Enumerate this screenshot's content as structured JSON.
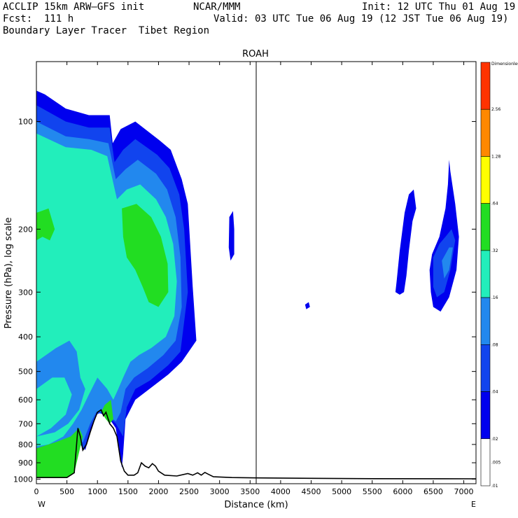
{
  "header": {
    "model": "ACCLIP 15km ARW–GFS init",
    "org": "NCAR/MMM",
    "init": "Init: 12 UTC Thu 01 Aug 19",
    "fcst": "Fcst:  111 h",
    "valid": "Valid: 03 UTC Tue 06 Aug 19 (12 JST Tue 06 Aug 19)",
    "field": "Boundary Layer Tracer  Tibet Region"
  },
  "chart_data": {
    "type": "contour-cross-section",
    "title": "ROAH",
    "xlabel": "Distance (km)",
    "ylabel": "Pressure (hPa), log scale",
    "x_left_label": "W",
    "x_right_label": "E",
    "xlim": [
      0,
      7200
    ],
    "ylim": [
      1030,
      68
    ],
    "y_scale": "log",
    "x_ticks": [
      0,
      500,
      1000,
      1500,
      2000,
      2500,
      3000,
      3500,
      4000,
      4500,
      5000,
      5500,
      6000,
      6500,
      7000
    ],
    "y_ticks": [
      100,
      200,
      300,
      400,
      500,
      600,
      700,
      800,
      900,
      1000
    ],
    "marker_line_x": 3600,
    "colorbar": {
      "levels": [
        "Dimensionless",
        "2.56",
        "1.28",
        ".64",
        ".32",
        ".16",
        ".08",
        ".04",
        ".02",
        ".01",
        ".005"
      ],
      "colors": [
        "#ff3300",
        "#ff8800",
        "#ffff00",
        "#22dd22",
        "#22eebb",
        "#2288ee",
        "#1144ee",
        "#0000ee",
        "#ffffff"
      ]
    },
    "terrain": [
      [
        0,
        990
      ],
      [
        100,
        990
      ],
      [
        300,
        990
      ],
      [
        500,
        990
      ],
      [
        620,
        960
      ],
      [
        680,
        720
      ],
      [
        720,
        760
      ],
      [
        760,
        830
      ],
      [
        820,
        800
      ],
      [
        880,
        740
      ],
      [
        940,
        690
      ],
      [
        1000,
        650
      ],
      [
        1060,
        640
      ],
      [
        1100,
        665
      ],
      [
        1140,
        650
      ],
      [
        1200,
        700
      ],
      [
        1260,
        720
      ],
      [
        1320,
        760
      ],
      [
        1380,
        890
      ],
      [
        1440,
        950
      ],
      [
        1500,
        975
      ],
      [
        1600,
        975
      ],
      [
        1660,
        960
      ],
      [
        1720,
        900
      ],
      [
        1780,
        920
      ],
      [
        1840,
        930
      ],
      [
        1900,
        905
      ],
      [
        1950,
        920
      ],
      [
        2000,
        950
      ],
      [
        2100,
        975
      ],
      [
        2300,
        980
      ],
      [
        2480,
        965
      ],
      [
        2560,
        975
      ],
      [
        2640,
        960
      ],
      [
        2700,
        975
      ],
      [
        2760,
        958
      ],
      [
        2820,
        970
      ],
      [
        2900,
        985
      ],
      [
        3200,
        990
      ],
      [
        3600,
        992
      ],
      [
        4500,
        995
      ],
      [
        5500,
        997
      ],
      [
        7200,
        998
      ]
    ],
    "regions": [
      {
        "level": 0,
        "points": [
          [
            0,
            82
          ],
          [
            140,
            84
          ],
          [
            480,
            92
          ],
          [
            860,
            96
          ],
          [
            1200,
            96
          ],
          [
            1250,
            115
          ],
          [
            1380,
            105
          ],
          [
            1620,
            100
          ],
          [
            2020,
            113
          ],
          [
            2200,
            120
          ],
          [
            2380,
            145
          ],
          [
            2480,
            170
          ],
          [
            2560,
            290
          ],
          [
            2620,
            410
          ],
          [
            2380,
            470
          ],
          [
            2160,
            510
          ],
          [
            1850,
            560
          ],
          [
            1620,
            600
          ],
          [
            1460,
            680
          ],
          [
            1420,
            850
          ],
          [
            1400,
            930
          ],
          [
            1300,
            720
          ],
          [
            1200,
            680
          ],
          [
            1100,
            660
          ],
          [
            1000,
            650
          ],
          [
            900,
            720
          ],
          [
            800,
            830
          ],
          [
            700,
            760
          ],
          [
            620,
            960
          ],
          [
            500,
            990
          ],
          [
            0,
            990
          ]
        ]
      },
      {
        "level": 1,
        "points": [
          [
            0,
            90
          ],
          [
            480,
            100
          ],
          [
            860,
            104
          ],
          [
            1200,
            104
          ],
          [
            1280,
            130
          ],
          [
            1420,
            120
          ],
          [
            1620,
            112
          ],
          [
            1980,
            124
          ],
          [
            2180,
            135
          ],
          [
            2340,
            160
          ],
          [
            2420,
            200
          ],
          [
            2480,
            300
          ],
          [
            2360,
            440
          ],
          [
            2160,
            480
          ],
          [
            1860,
            530
          ],
          [
            1620,
            560
          ],
          [
            1480,
            630
          ],
          [
            1420,
            760
          ],
          [
            1300,
            700
          ],
          [
            1160,
            665
          ],
          [
            1080,
            650
          ],
          [
            980,
            660
          ],
          [
            880,
            720
          ],
          [
            780,
            830
          ],
          [
            680,
            780
          ],
          [
            600,
            960
          ],
          [
            0,
            990
          ]
        ]
      },
      {
        "level": 2,
        "points": [
          [
            0,
            100
          ],
          [
            480,
            110
          ],
          [
            860,
            112
          ],
          [
            1180,
            115
          ],
          [
            1300,
            145
          ],
          [
            1460,
            136
          ],
          [
            1660,
            128
          ],
          [
            1960,
            140
          ],
          [
            2140,
            155
          ],
          [
            2280,
            185
          ],
          [
            2360,
            240
          ],
          [
            2380,
            330
          ],
          [
            2280,
            410
          ],
          [
            2080,
            450
          ],
          [
            1820,
            490
          ],
          [
            1600,
            520
          ],
          [
            1460,
            560
          ],
          [
            1380,
            650
          ],
          [
            1300,
            690
          ],
          [
            1180,
            665
          ],
          [
            1080,
            645
          ],
          [
            980,
            650
          ],
          [
            880,
            700
          ],
          [
            760,
            790
          ],
          [
            640,
            760
          ],
          [
            560,
            940
          ],
          [
            0,
            985
          ]
        ]
      },
      {
        "level": 3,
        "points": [
          [
            0,
            108
          ],
          [
            480,
            118
          ],
          [
            900,
            120
          ],
          [
            1160,
            125
          ],
          [
            1320,
            165
          ],
          [
            1480,
            155
          ],
          [
            1700,
            150
          ],
          [
            1960,
            165
          ],
          [
            2120,
            185
          ],
          [
            2240,
            220
          ],
          [
            2300,
            280
          ],
          [
            2260,
            350
          ],
          [
            2120,
            400
          ],
          [
            1880,
            430
          ],
          [
            1680,
            450
          ],
          [
            1540,
            470
          ],
          [
            1420,
            520
          ],
          [
            1340,
            560
          ],
          [
            1260,
            600
          ],
          [
            1160,
            560
          ],
          [
            1000,
            520
          ],
          [
            860,
            580
          ],
          [
            740,
            640
          ],
          [
            600,
            700
          ],
          [
            440,
            760
          ],
          [
            200,
            800
          ],
          [
            0,
            810
          ]
        ]
      },
      {
        "level": 4,
        "points": [
          [
            1400,
            175
          ],
          [
            1640,
            170
          ],
          [
            1880,
            185
          ],
          [
            2040,
            210
          ],
          [
            2150,
            250
          ],
          [
            2160,
            300
          ],
          [
            2000,
            330
          ],
          [
            1840,
            320
          ],
          [
            1740,
            290
          ],
          [
            1620,
            260
          ],
          [
            1480,
            240
          ],
          [
            1420,
            210
          ]
        ]
      },
      {
        "level": 4,
        "points": [
          [
            0,
            180
          ],
          [
            200,
            175
          ],
          [
            300,
            200
          ],
          [
            220,
            215
          ],
          [
            100,
            210
          ],
          [
            0,
            215
          ]
        ]
      },
      {
        "level": 4,
        "points": [
          [
            0,
            820
          ],
          [
            300,
            790
          ],
          [
            560,
            760
          ],
          [
            700,
            720
          ],
          [
            760,
            760
          ],
          [
            620,
            960
          ],
          [
            500,
            990
          ],
          [
            0,
            990
          ]
        ]
      },
      {
        "level": 4,
        "points": [
          [
            1060,
            650
          ],
          [
            1120,
            620
          ],
          [
            1220,
            600
          ],
          [
            1260,
            680
          ],
          [
            1200,
            700
          ],
          [
            1140,
            680
          ]
        ]
      },
      {
        "level": 2,
        "points": [
          [
            0,
            470
          ],
          [
            320,
            430
          ],
          [
            540,
            410
          ],
          [
            660,
            440
          ],
          [
            720,
            520
          ],
          [
            800,
            560
          ],
          [
            700,
            640
          ],
          [
            520,
            700
          ],
          [
            300,
            740
          ],
          [
            0,
            760
          ]
        ]
      },
      {
        "level": 3,
        "points": [
          [
            0,
            560
          ],
          [
            260,
            520
          ],
          [
            460,
            520
          ],
          [
            580,
            580
          ],
          [
            480,
            660
          ],
          [
            240,
            720
          ],
          [
            0,
            760
          ]
        ]
      },
      {
        "level": 0,
        "points": [
          [
            3160,
            185
          ],
          [
            3220,
            178
          ],
          [
            3240,
            200
          ],
          [
            3240,
            235
          ],
          [
            3180,
            245
          ],
          [
            3150,
            225
          ]
        ]
      },
      {
        "level": 0,
        "points": [
          [
            4400,
            325
          ],
          [
            4460,
            320
          ],
          [
            4480,
            330
          ],
          [
            4420,
            335
          ]
        ]
      },
      {
        "level": 0,
        "points": [
          [
            5900,
            280
          ],
          [
            5950,
            230
          ],
          [
            6030,
            180
          ],
          [
            6100,
            160
          ],
          [
            6180,
            155
          ],
          [
            6220,
            175
          ],
          [
            6160,
            190
          ],
          [
            6100,
            230
          ],
          [
            6060,
            270
          ],
          [
            6020,
            300
          ],
          [
            5950,
            305
          ],
          [
            5880,
            300
          ]
        ]
      },
      {
        "level": 0,
        "points": [
          [
            6480,
            235
          ],
          [
            6600,
            210
          ],
          [
            6700,
            175
          ],
          [
            6740,
            150
          ],
          [
            6760,
            128
          ],
          [
            6780,
            138
          ],
          [
            6860,
            170
          ],
          [
            6920,
            210
          ],
          [
            6880,
            260
          ],
          [
            6760,
            310
          ],
          [
            6620,
            340
          ],
          [
            6500,
            330
          ],
          [
            6460,
            300
          ],
          [
            6440,
            260
          ]
        ]
      },
      {
        "level": 1,
        "points": [
          [
            6500,
            240
          ],
          [
            6600,
            220
          ],
          [
            6700,
            210
          ],
          [
            6800,
            200
          ],
          [
            6860,
            215
          ],
          [
            6780,
            260
          ],
          [
            6680,
            300
          ],
          [
            6560,
            310
          ],
          [
            6500,
            290
          ]
        ]
      },
      {
        "level": 2,
        "points": [
          [
            6640,
            245
          ],
          [
            6760,
            225
          ],
          [
            6820,
            225
          ],
          [
            6760,
            260
          ],
          [
            6680,
            275
          ]
        ]
      }
    ]
  }
}
